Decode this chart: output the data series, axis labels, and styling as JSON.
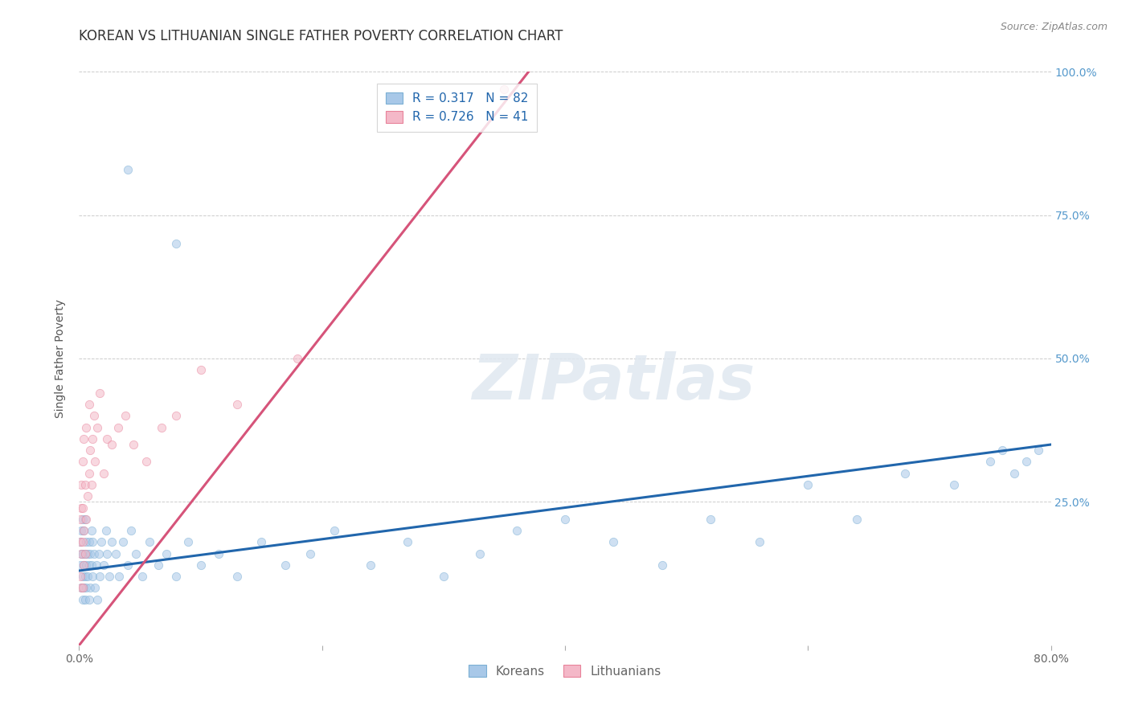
{
  "title": "KOREAN VS LITHUANIAN SINGLE FATHER POVERTY CORRELATION CHART",
  "source": "Source: ZipAtlas.com",
  "ylabel": "Single Father Poverty",
  "watermark": "ZIPatlas",
  "legend_entries": [
    {
      "label": "Koreans",
      "R": "0.317",
      "N": "82",
      "color": "#a8c8e8"
    },
    {
      "label": "Lithuanians",
      "R": "0.726",
      "N": "41",
      "color": "#f4b8c8"
    }
  ],
  "xlim": [
    0.0,
    0.8
  ],
  "ylim": [
    0.0,
    1.0
  ],
  "xticks": [
    0.0,
    0.2,
    0.4,
    0.6,
    0.8
  ],
  "yticks": [
    0.0,
    0.25,
    0.5,
    0.75,
    1.0
  ],
  "xtick_labels": [
    "0.0%",
    "",
    "",
    "",
    "80.0%"
  ],
  "ytick_labels": [
    "",
    "25.0%",
    "50.0%",
    "75.0%",
    "100.0%"
  ],
  "korean_line_x": [
    0.0,
    0.8
  ],
  "korean_line_y": [
    0.13,
    0.35
  ],
  "lith_line_x": [
    0.0,
    0.37
  ],
  "lith_line_y": [
    0.0,
    1.0
  ],
  "korean_line_color": "#2166ac",
  "lith_line_color": "#d6547a",
  "korean_dot_color": "#a8c8e8",
  "lith_dot_color": "#f4b8c8",
  "korean_dot_edge": "#7bafd4",
  "lith_dot_edge": "#e8829a",
  "background_color": "#ffffff",
  "grid_color": "#cccccc",
  "title_fontsize": 12,
  "axis_label_fontsize": 10,
  "tick_fontsize": 10,
  "legend_fontsize": 11,
  "dot_size": 55,
  "dot_alpha": 0.55,
  "line_width": 2.2,
  "korean_x": [
    0.001,
    0.001,
    0.002,
    0.002,
    0.002,
    0.003,
    0.003,
    0.003,
    0.003,
    0.004,
    0.004,
    0.004,
    0.005,
    0.005,
    0.005,
    0.005,
    0.006,
    0.006,
    0.006,
    0.007,
    0.007,
    0.008,
    0.008,
    0.008,
    0.009,
    0.009,
    0.01,
    0.01,
    0.011,
    0.011,
    0.012,
    0.013,
    0.014,
    0.015,
    0.016,
    0.017,
    0.018,
    0.02,
    0.022,
    0.023,
    0.025,
    0.027,
    0.03,
    0.033,
    0.036,
    0.04,
    0.043,
    0.047,
    0.052,
    0.058,
    0.065,
    0.072,
    0.08,
    0.09,
    0.1,
    0.115,
    0.13,
    0.15,
    0.17,
    0.19,
    0.21,
    0.24,
    0.27,
    0.3,
    0.33,
    0.36,
    0.4,
    0.44,
    0.48,
    0.52,
    0.56,
    0.6,
    0.64,
    0.68,
    0.72,
    0.75,
    0.76,
    0.77,
    0.78,
    0.79,
    0.04,
    0.08
  ],
  "korean_y": [
    0.14,
    0.18,
    0.1,
    0.16,
    0.2,
    0.08,
    0.12,
    0.16,
    0.22,
    0.1,
    0.14,
    0.2,
    0.08,
    0.12,
    0.16,
    0.22,
    0.1,
    0.14,
    0.18,
    0.12,
    0.16,
    0.08,
    0.14,
    0.18,
    0.1,
    0.16,
    0.14,
    0.2,
    0.12,
    0.18,
    0.16,
    0.1,
    0.14,
    0.08,
    0.16,
    0.12,
    0.18,
    0.14,
    0.2,
    0.16,
    0.12,
    0.18,
    0.16,
    0.12,
    0.18,
    0.14,
    0.2,
    0.16,
    0.12,
    0.18,
    0.14,
    0.16,
    0.12,
    0.18,
    0.14,
    0.16,
    0.12,
    0.18,
    0.14,
    0.16,
    0.2,
    0.14,
    0.18,
    0.12,
    0.16,
    0.2,
    0.22,
    0.18,
    0.14,
    0.22,
    0.18,
    0.28,
    0.22,
    0.3,
    0.28,
    0.32,
    0.34,
    0.3,
    0.32,
    0.34,
    0.83,
    0.7
  ],
  "lith_x": [
    0.001,
    0.001,
    0.001,
    0.002,
    0.002,
    0.002,
    0.002,
    0.003,
    0.003,
    0.003,
    0.003,
    0.004,
    0.004,
    0.004,
    0.005,
    0.005,
    0.006,
    0.006,
    0.007,
    0.008,
    0.008,
    0.009,
    0.01,
    0.011,
    0.012,
    0.013,
    0.015,
    0.017,
    0.02,
    0.023,
    0.027,
    0.032,
    0.038,
    0.045,
    0.055,
    0.068,
    0.08,
    0.1,
    0.13,
    0.18,
    0.35
  ],
  "lith_y": [
    0.12,
    0.18,
    0.22,
    0.1,
    0.16,
    0.24,
    0.28,
    0.1,
    0.18,
    0.24,
    0.32,
    0.14,
    0.2,
    0.36,
    0.16,
    0.28,
    0.22,
    0.38,
    0.26,
    0.3,
    0.42,
    0.34,
    0.28,
    0.36,
    0.4,
    0.32,
    0.38,
    0.44,
    0.3,
    0.36,
    0.35,
    0.38,
    0.4,
    0.35,
    0.32,
    0.38,
    0.4,
    0.48,
    0.42,
    0.5,
    0.97
  ]
}
